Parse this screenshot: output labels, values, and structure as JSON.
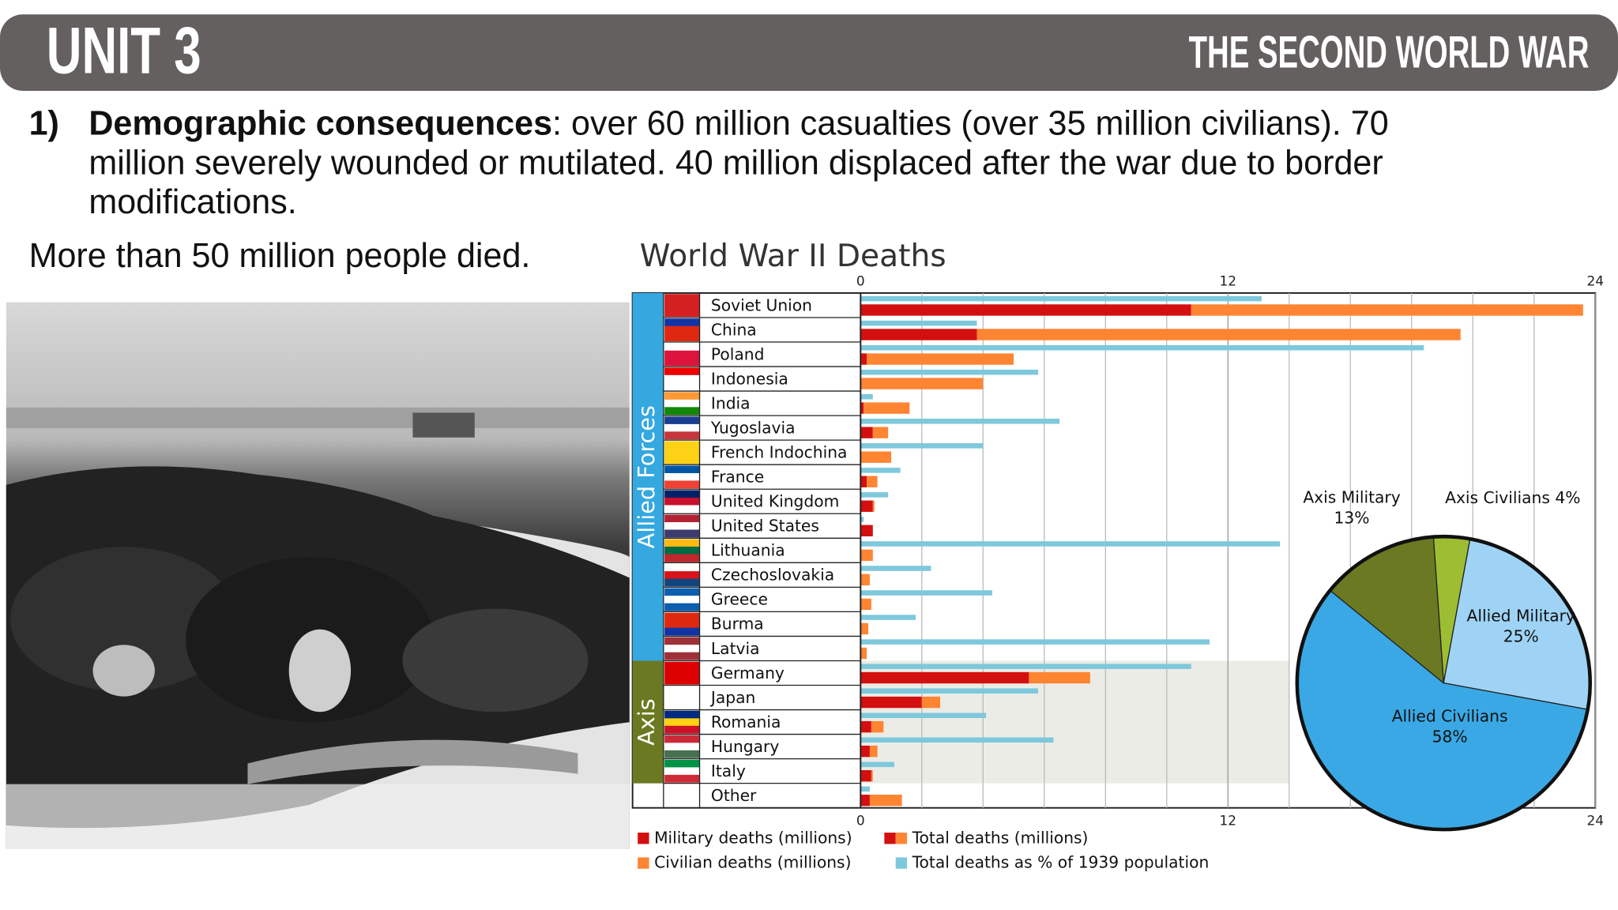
{
  "header": {
    "unit": "UNIT 3",
    "title": "THE SECOND WORLD WAR"
  },
  "content": {
    "number": "1)",
    "bold": "Demographic consequences",
    "lines": [
      ": over 60 million casualties (over 35 million civilians). 70",
      "million severely wounded or mutilated. 40 million displaced after the war due to border",
      "modifications."
    ],
    "summary": "More than 50 million people died."
  },
  "chart_data": [
    {
      "type": "bar",
      "title": "World War II Deaths",
      "categories": [
        "Soviet Union",
        "China",
        "Poland",
        "Indonesia",
        "India",
        "Yugoslavia",
        "French Indochina",
        "France",
        "United Kingdom",
        "United States",
        "Lithuania",
        "Czechoslovakia",
        "Greece",
        "Burma",
        "Latvia",
        "Germany",
        "Japan",
        "Romania",
        "Hungary",
        "Italy",
        "Other"
      ],
      "groups": [
        "Allied Forces",
        "Allied Forces",
        "Allied Forces",
        "Allied Forces",
        "Allied Forces",
        "Allied Forces",
        "Allied Forces",
        "Allied Forces",
        "Allied Forces",
        "Allied Forces",
        "Allied Forces",
        "Allied Forces",
        "Allied Forces",
        "Allied Forces",
        "Allied Forces",
        "Axis",
        "Axis",
        "Axis",
        "Axis",
        "Axis",
        null
      ],
      "group_colors": [
        "#35a8e0",
        "#6b7a22"
      ],
      "series": [
        {
          "name": "Military deaths (millions)",
          "color": "#d40f0f",
          "values": [
            10.8,
            3.8,
            0.2,
            0,
            0.1,
            0.4,
            0,
            0.2,
            0.4,
            0.4,
            0,
            0,
            0,
            0,
            0,
            5.5,
            2.0,
            0.35,
            0.3,
            0.35,
            0.3
          ]
        },
        {
          "name": "Civilian deaths (millions)",
          "color": "#ff8533",
          "values": [
            12.8,
            15.8,
            4.8,
            4.0,
            1.5,
            0.5,
            1.0,
            0.35,
            0.05,
            0,
            0.4,
            0.3,
            0.35,
            0.25,
            0.2,
            2.0,
            0.6,
            0.4,
            0.25,
            0.05,
            1.05
          ]
        },
        {
          "name": "Total deaths as % of 1939 population",
          "color": "#7ec8dc",
          "values": [
            13.1,
            3.8,
            18.4,
            5.8,
            0.4,
            6.5,
            4.0,
            1.3,
            0.9,
            0.1,
            13.7,
            2.3,
            4.3,
            1.8,
            11.4,
            10.8,
            5.8,
            4.1,
            6.3,
            1.1,
            0.3
          ]
        }
      ],
      "total_legend": "Total deaths (millions)",
      "xlim": [
        0,
        24
      ],
      "xticks": [
        0,
        12,
        24
      ],
      "minor_xticks": [
        2,
        4,
        6,
        8,
        10,
        14,
        16,
        18,
        20,
        22
      ],
      "grid": true
    },
    {
      "type": "pie",
      "categories": [
        "Axis Civilians",
        "Allied Military",
        "Allied Civilians",
        "Axis Military"
      ],
      "values": [
        4,
        25,
        58,
        13
      ],
      "value_labels": [
        "4%",
        "25%",
        "58%",
        "13%"
      ],
      "colors": [
        "#9dbe32",
        "#9fd3f5",
        "#3aa8e4",
        "#6b7a22"
      ]
    }
  ]
}
